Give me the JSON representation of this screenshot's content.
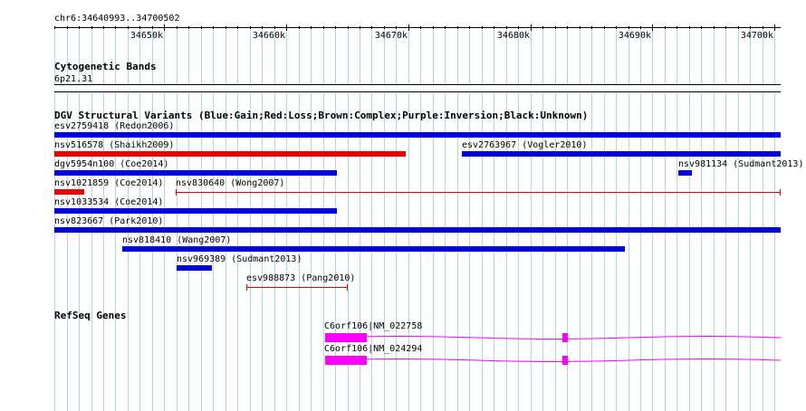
{
  "ruler": {
    "region_label": "chr6:34640993..34700502",
    "start": 34640993,
    "end": 34700502,
    "ticks": [
      {
        "pos": 34650000,
        "label": "34650k"
      },
      {
        "pos": 34660000,
        "label": "34660k"
      },
      {
        "pos": 34670000,
        "label": "34670k"
      },
      {
        "pos": 34680000,
        "label": "34680k"
      },
      {
        "pos": 34690000,
        "label": "34690k"
      },
      {
        "pos": 34700000,
        "label": "34700k"
      }
    ]
  },
  "cytoband": {
    "title": "Cytogenetic Bands",
    "band_label": "6p21.31"
  },
  "dgv": {
    "title": "DGV Structural Variants (Blue:Gain;Red:Loss;Brown:Complex;Purple:Inversion;Black:Unknown)",
    "colors": {
      "gain": "#0000dd",
      "loss": "#ee0000"
    },
    "features": [
      {
        "label": "esv2759418 (Redon2006)",
        "type": "gain",
        "style": "bar",
        "start": 34640993,
        "end": 34700502,
        "row": 0
      },
      {
        "label": "nsv516578 (Shaikh2009)",
        "type": "loss",
        "style": "bar",
        "start": 34640993,
        "end": 34669750,
        "row": 1
      },
      {
        "label": "esv2763967 (Vogler2010)",
        "type": "gain",
        "style": "bar",
        "start": 34674350,
        "end": 34700502,
        "row": 1
      },
      {
        "label": "dgv5954n100 (Coe2014)",
        "type": "gain",
        "style": "bar",
        "start": 34640993,
        "end": 34664130,
        "row": 2
      },
      {
        "label": "nsv981134 (Sudmant2013)",
        "type": "gain",
        "style": "bar",
        "start": 34692130,
        "end": 34693200,
        "row": 2
      },
      {
        "label": "nsv1021859 (Coe2014)",
        "type": "loss",
        "style": "bar",
        "start": 34640993,
        "end": 34643430,
        "row": 3
      },
      {
        "label": "nsv830640 (Wong2007)",
        "type": "loss",
        "style": "line",
        "start": 34650930,
        "end": 34700502,
        "row": 3
      },
      {
        "label": "nsv1033534 (Coe2014)",
        "type": "gain",
        "style": "bar",
        "start": 34640993,
        "end": 34664130,
        "row": 4
      },
      {
        "label": "nsv823667 (Park2010)",
        "type": "gain",
        "style": "bar",
        "start": 34640993,
        "end": 34700502,
        "row": 5
      },
      {
        "label": "nsv818410 (Wang2007)",
        "type": "gain",
        "style": "bar",
        "start": 34646570,
        "end": 34687730,
        "row": 6
      },
      {
        "label": "nsv969389 (Sudmant2013)",
        "type": "gain",
        "style": "bar",
        "start": 34651000,
        "end": 34653930,
        "row": 7
      },
      {
        "label": "esv988873 (Pang2010)",
        "type": "loss",
        "style": "line",
        "start": 34656730,
        "end": 34665070,
        "row": 8
      }
    ]
  },
  "refseq": {
    "title": "RefSeq Genes",
    "color": "#ff00ff",
    "genes": [
      {
        "label": "C6orf106|NM_022758",
        "start": 34663150,
        "end": 34700502,
        "exons": [
          {
            "start": 34663150,
            "end": 34666600
          },
          {
            "start": 34682600,
            "end": 34683000
          }
        ]
      },
      {
        "label": "C6orf106|NM_024294",
        "start": 34663150,
        "end": 34700502,
        "exons": [
          {
            "start": 34663150,
            "end": 34666600
          },
          {
            "start": 34682600,
            "end": 34683000
          }
        ]
      }
    ]
  }
}
